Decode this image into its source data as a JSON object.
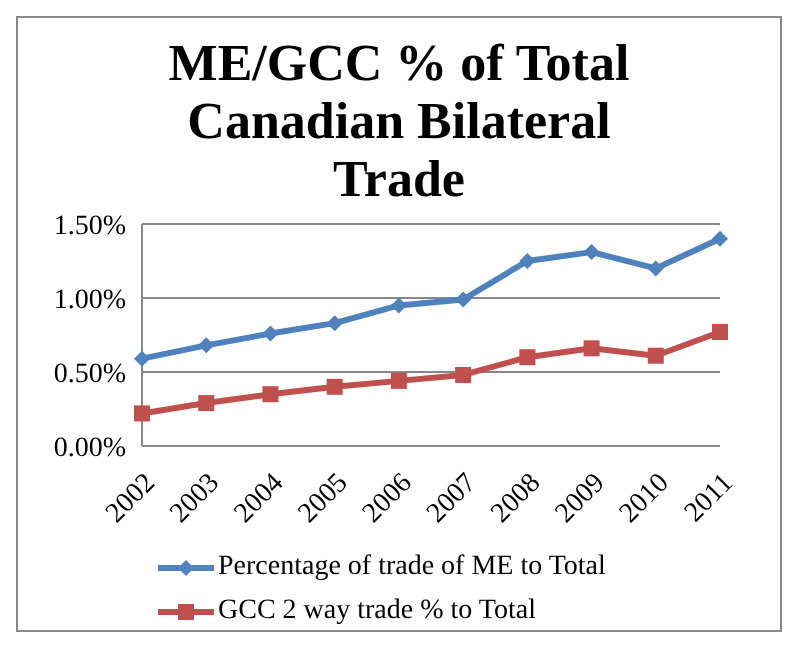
{
  "chart_data": {
    "type": "line",
    "title": "ME/GCC % of Total Canadian Bilateral Trade",
    "categories": [
      "2002",
      "2003",
      "2004",
      "2005",
      "2006",
      "2007",
      "2008",
      "2009",
      "2010",
      "2011"
    ],
    "series": [
      {
        "name": "Percentage of trade of ME to Total",
        "color": "#4f81bd",
        "marker": "diamond",
        "values": [
          0.59,
          0.68,
          0.76,
          0.83,
          0.95,
          0.99,
          1.25,
          1.31,
          1.2,
          1.4
        ]
      },
      {
        "name": "GCC 2 way trade % to Total",
        "color": "#c0504d",
        "marker": "square",
        "values": [
          0.22,
          0.29,
          0.35,
          0.4,
          0.44,
          0.48,
          0.6,
          0.66,
          0.61,
          0.77
        ]
      }
    ],
    "ylim": [
      0,
      1.5
    ],
    "yticks": [
      {
        "value": 0,
        "label": "0.00%"
      },
      {
        "value": 0.5,
        "label": "0.50%"
      },
      {
        "value": 1,
        "label": "1.00%"
      },
      {
        "value": 1.5,
        "label": "1.50%"
      }
    ],
    "grid": "y",
    "legend": "bottom"
  }
}
